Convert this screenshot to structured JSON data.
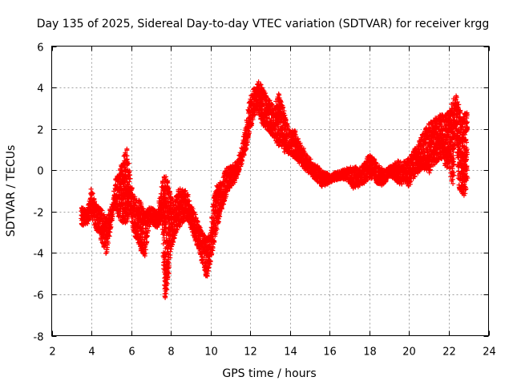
{
  "chart_data": {
    "type": "scatter",
    "title": "Day 135 of 2025, Sidereal Day-to-day VTEC variation (SDTVAR) for receiver krgg",
    "xlabel": "GPS time / hours",
    "ylabel": "SDTVAR / TECUs",
    "xlim": [
      2,
      24
    ],
    "ylim": [
      -8,
      6
    ],
    "xticks": [
      2,
      4,
      6,
      8,
      10,
      12,
      14,
      16,
      18,
      20,
      22,
      24
    ],
    "yticks": [
      -8,
      -6,
      -4,
      -2,
      0,
      2,
      4,
      6
    ],
    "grid": true,
    "marker": "+",
    "series": [
      {
        "name": "SDTVAR",
        "color": "#ff0000",
        "band_description": "dense clouds of '+' markers; each entry is [hour, y_min, y_max] envelope of the cloud",
        "envelope": [
          [
            3.5,
            -2.7,
            -1.8
          ],
          [
            3.8,
            -2.6,
            -1.9
          ],
          [
            4.0,
            -2.2,
            -0.9
          ],
          [
            4.2,
            -2.8,
            -1.6
          ],
          [
            4.4,
            -3.2,
            -1.8
          ],
          [
            4.6,
            -3.6,
            -2.0
          ],
          [
            4.75,
            -4.1,
            -2.3
          ],
          [
            4.9,
            -3.2,
            -2.0
          ],
          [
            5.1,
            -2.0,
            -1.5
          ],
          [
            5.2,
            -1.6,
            -0.4
          ],
          [
            5.35,
            -2.2,
            -0.2
          ],
          [
            5.5,
            -2.5,
            0.3
          ],
          [
            5.65,
            -2.6,
            0.8
          ],
          [
            5.8,
            -2.5,
            1.1
          ],
          [
            5.95,
            -2.0,
            -0.4
          ],
          [
            6.1,
            -3.0,
            -1.2
          ],
          [
            6.3,
            -3.4,
            -1.3
          ],
          [
            6.5,
            -3.9,
            -1.5
          ],
          [
            6.7,
            -4.2,
            -2.0
          ],
          [
            6.85,
            -3.0,
            -1.8
          ],
          [
            7.0,
            -2.5,
            -1.8
          ],
          [
            7.3,
            -2.8,
            -2.0
          ],
          [
            7.55,
            -2.4,
            -0.8
          ],
          [
            7.7,
            -6.4,
            0.0
          ],
          [
            7.85,
            -5.5,
            -0.6
          ],
          [
            8.0,
            -4.0,
            -1.2
          ],
          [
            8.2,
            -3.2,
            -1.4
          ],
          [
            8.4,
            -2.8,
            -0.8
          ],
          [
            8.6,
            -2.5,
            -0.9
          ],
          [
            8.8,
            -2.4,
            -1.0
          ],
          [
            9.0,
            -2.8,
            -1.6
          ],
          [
            9.2,
            -3.4,
            -2.0
          ],
          [
            9.4,
            -3.8,
            -2.6
          ],
          [
            9.6,
            -4.6,
            -3.0
          ],
          [
            9.8,
            -5.2,
            -3.3
          ],
          [
            10.0,
            -4.6,
            -3.0
          ],
          [
            10.2,
            -3.4,
            -1.0
          ],
          [
            10.4,
            -2.6,
            -0.6
          ],
          [
            10.6,
            -1.8,
            -0.4
          ],
          [
            10.8,
            -1.2,
            0.1
          ],
          [
            11.0,
            -0.8,
            0.2
          ],
          [
            11.2,
            -0.6,
            0.3
          ],
          [
            11.4,
            -0.2,
            0.6
          ],
          [
            11.6,
            0.4,
            1.2
          ],
          [
            11.8,
            1.0,
            2.4
          ],
          [
            12.0,
            2.0,
            3.6
          ],
          [
            12.2,
            2.6,
            4.0
          ],
          [
            12.4,
            2.8,
            4.3
          ],
          [
            12.6,
            2.2,
            4.1
          ],
          [
            12.8,
            2.0,
            3.6
          ],
          [
            13.0,
            1.8,
            3.4
          ],
          [
            13.2,
            1.5,
            3.0
          ],
          [
            13.4,
            1.2,
            3.8
          ],
          [
            13.6,
            1.0,
            3.2
          ],
          [
            13.8,
            0.8,
            2.6
          ],
          [
            14.0,
            0.8,
            2.0
          ],
          [
            14.2,
            0.6,
            2.0
          ],
          [
            14.4,
            0.4,
            1.6
          ],
          [
            14.6,
            0.2,
            1.2
          ],
          [
            14.8,
            0.0,
            0.8
          ],
          [
            15.0,
            -0.2,
            0.6
          ],
          [
            15.2,
            -0.4,
            0.3
          ],
          [
            15.4,
            -0.6,
            0.2
          ],
          [
            15.6,
            -0.8,
            0.0
          ],
          [
            15.8,
            -0.8,
            -0.1
          ],
          [
            16.0,
            -0.6,
            -0.2
          ],
          [
            16.3,
            -0.5,
            -0.1
          ],
          [
            16.6,
            -0.4,
            0.0
          ],
          [
            16.9,
            -0.5,
            0.1
          ],
          [
            17.2,
            -0.9,
            0.2
          ],
          [
            17.5,
            -0.8,
            0.1
          ],
          [
            17.8,
            -0.6,
            0.4
          ],
          [
            18.0,
            -0.4,
            0.8
          ],
          [
            18.2,
            -0.5,
            0.6
          ],
          [
            18.4,
            -0.7,
            0.3
          ],
          [
            18.6,
            -0.8,
            0.1
          ],
          [
            18.8,
            -0.6,
            0.0
          ],
          [
            19.0,
            -0.3,
            0.2
          ],
          [
            19.2,
            -0.4,
            0.3
          ],
          [
            19.4,
            -0.6,
            0.5
          ],
          [
            19.6,
            -0.7,
            0.4
          ],
          [
            19.8,
            -0.6,
            0.5
          ],
          [
            20.0,
            -0.8,
            0.6
          ],
          [
            20.2,
            -0.4,
            0.9
          ],
          [
            20.4,
            -0.2,
            1.2
          ],
          [
            20.6,
            0.0,
            1.6
          ],
          [
            20.8,
            0.0,
            2.0
          ],
          [
            21.0,
            -0.2,
            2.3
          ],
          [
            21.2,
            0.2,
            2.4
          ],
          [
            21.4,
            0.4,
            2.6
          ],
          [
            21.6,
            0.6,
            2.7
          ],
          [
            21.8,
            0.2,
            2.7
          ],
          [
            22.0,
            0.0,
            2.8
          ],
          [
            22.2,
            -0.8,
            3.4
          ],
          [
            22.35,
            2.0,
            3.7
          ],
          [
            22.5,
            -1.0,
            3.2
          ],
          [
            22.65,
            -1.1,
            2.6
          ],
          [
            22.8,
            -1.3,
            2.8
          ],
          [
            22.95,
            -0.2,
            3.0
          ]
        ]
      }
    ]
  }
}
